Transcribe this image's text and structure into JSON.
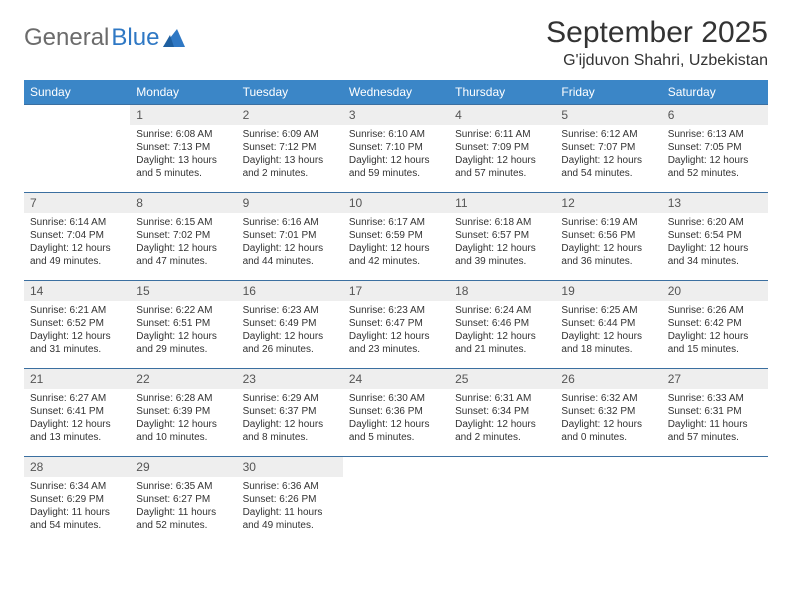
{
  "brand": {
    "part1": "General",
    "part2": "Blue"
  },
  "title": "September 2025",
  "subtitle": "G'ijduvon Shahri, Uzbekistan",
  "colors": {
    "header_bg": "#3b86c7",
    "header_text": "#ffffff",
    "rule": "#3b6fa0",
    "daynum_bg": "#eeeeee",
    "logo_gray": "#6b6b6b",
    "logo_blue": "#2f78c4"
  },
  "dayHeaders": [
    "Sunday",
    "Monday",
    "Tuesday",
    "Wednesday",
    "Thursday",
    "Friday",
    "Saturday"
  ],
  "weeks": [
    [
      null,
      {
        "n": "1",
        "sunrise": "Sunrise: 6:08 AM",
        "sunset": "Sunset: 7:13 PM",
        "daylight": "Daylight: 13 hours and 5 minutes."
      },
      {
        "n": "2",
        "sunrise": "Sunrise: 6:09 AM",
        "sunset": "Sunset: 7:12 PM",
        "daylight": "Daylight: 13 hours and 2 minutes."
      },
      {
        "n": "3",
        "sunrise": "Sunrise: 6:10 AM",
        "sunset": "Sunset: 7:10 PM",
        "daylight": "Daylight: 12 hours and 59 minutes."
      },
      {
        "n": "4",
        "sunrise": "Sunrise: 6:11 AM",
        "sunset": "Sunset: 7:09 PM",
        "daylight": "Daylight: 12 hours and 57 minutes."
      },
      {
        "n": "5",
        "sunrise": "Sunrise: 6:12 AM",
        "sunset": "Sunset: 7:07 PM",
        "daylight": "Daylight: 12 hours and 54 minutes."
      },
      {
        "n": "6",
        "sunrise": "Sunrise: 6:13 AM",
        "sunset": "Sunset: 7:05 PM",
        "daylight": "Daylight: 12 hours and 52 minutes."
      }
    ],
    [
      {
        "n": "7",
        "sunrise": "Sunrise: 6:14 AM",
        "sunset": "Sunset: 7:04 PM",
        "daylight": "Daylight: 12 hours and 49 minutes."
      },
      {
        "n": "8",
        "sunrise": "Sunrise: 6:15 AM",
        "sunset": "Sunset: 7:02 PM",
        "daylight": "Daylight: 12 hours and 47 minutes."
      },
      {
        "n": "9",
        "sunrise": "Sunrise: 6:16 AM",
        "sunset": "Sunset: 7:01 PM",
        "daylight": "Daylight: 12 hours and 44 minutes."
      },
      {
        "n": "10",
        "sunrise": "Sunrise: 6:17 AM",
        "sunset": "Sunset: 6:59 PM",
        "daylight": "Daylight: 12 hours and 42 minutes."
      },
      {
        "n": "11",
        "sunrise": "Sunrise: 6:18 AM",
        "sunset": "Sunset: 6:57 PM",
        "daylight": "Daylight: 12 hours and 39 minutes."
      },
      {
        "n": "12",
        "sunrise": "Sunrise: 6:19 AM",
        "sunset": "Sunset: 6:56 PM",
        "daylight": "Daylight: 12 hours and 36 minutes."
      },
      {
        "n": "13",
        "sunrise": "Sunrise: 6:20 AM",
        "sunset": "Sunset: 6:54 PM",
        "daylight": "Daylight: 12 hours and 34 minutes."
      }
    ],
    [
      {
        "n": "14",
        "sunrise": "Sunrise: 6:21 AM",
        "sunset": "Sunset: 6:52 PM",
        "daylight": "Daylight: 12 hours and 31 minutes."
      },
      {
        "n": "15",
        "sunrise": "Sunrise: 6:22 AM",
        "sunset": "Sunset: 6:51 PM",
        "daylight": "Daylight: 12 hours and 29 minutes."
      },
      {
        "n": "16",
        "sunrise": "Sunrise: 6:23 AM",
        "sunset": "Sunset: 6:49 PM",
        "daylight": "Daylight: 12 hours and 26 minutes."
      },
      {
        "n": "17",
        "sunrise": "Sunrise: 6:23 AM",
        "sunset": "Sunset: 6:47 PM",
        "daylight": "Daylight: 12 hours and 23 minutes."
      },
      {
        "n": "18",
        "sunrise": "Sunrise: 6:24 AM",
        "sunset": "Sunset: 6:46 PM",
        "daylight": "Daylight: 12 hours and 21 minutes."
      },
      {
        "n": "19",
        "sunrise": "Sunrise: 6:25 AM",
        "sunset": "Sunset: 6:44 PM",
        "daylight": "Daylight: 12 hours and 18 minutes."
      },
      {
        "n": "20",
        "sunrise": "Sunrise: 6:26 AM",
        "sunset": "Sunset: 6:42 PM",
        "daylight": "Daylight: 12 hours and 15 minutes."
      }
    ],
    [
      {
        "n": "21",
        "sunrise": "Sunrise: 6:27 AM",
        "sunset": "Sunset: 6:41 PM",
        "daylight": "Daylight: 12 hours and 13 minutes."
      },
      {
        "n": "22",
        "sunrise": "Sunrise: 6:28 AM",
        "sunset": "Sunset: 6:39 PM",
        "daylight": "Daylight: 12 hours and 10 minutes."
      },
      {
        "n": "23",
        "sunrise": "Sunrise: 6:29 AM",
        "sunset": "Sunset: 6:37 PM",
        "daylight": "Daylight: 12 hours and 8 minutes."
      },
      {
        "n": "24",
        "sunrise": "Sunrise: 6:30 AM",
        "sunset": "Sunset: 6:36 PM",
        "daylight": "Daylight: 12 hours and 5 minutes."
      },
      {
        "n": "25",
        "sunrise": "Sunrise: 6:31 AM",
        "sunset": "Sunset: 6:34 PM",
        "daylight": "Daylight: 12 hours and 2 minutes."
      },
      {
        "n": "26",
        "sunrise": "Sunrise: 6:32 AM",
        "sunset": "Sunset: 6:32 PM",
        "daylight": "Daylight: 12 hours and 0 minutes."
      },
      {
        "n": "27",
        "sunrise": "Sunrise: 6:33 AM",
        "sunset": "Sunset: 6:31 PM",
        "daylight": "Daylight: 11 hours and 57 minutes."
      }
    ],
    [
      {
        "n": "28",
        "sunrise": "Sunrise: 6:34 AM",
        "sunset": "Sunset: 6:29 PM",
        "daylight": "Daylight: 11 hours and 54 minutes."
      },
      {
        "n": "29",
        "sunrise": "Sunrise: 6:35 AM",
        "sunset": "Sunset: 6:27 PM",
        "daylight": "Daylight: 11 hours and 52 minutes."
      },
      {
        "n": "30",
        "sunrise": "Sunrise: 6:36 AM",
        "sunset": "Sunset: 6:26 PM",
        "daylight": "Daylight: 11 hours and 49 minutes."
      },
      null,
      null,
      null,
      null
    ]
  ]
}
